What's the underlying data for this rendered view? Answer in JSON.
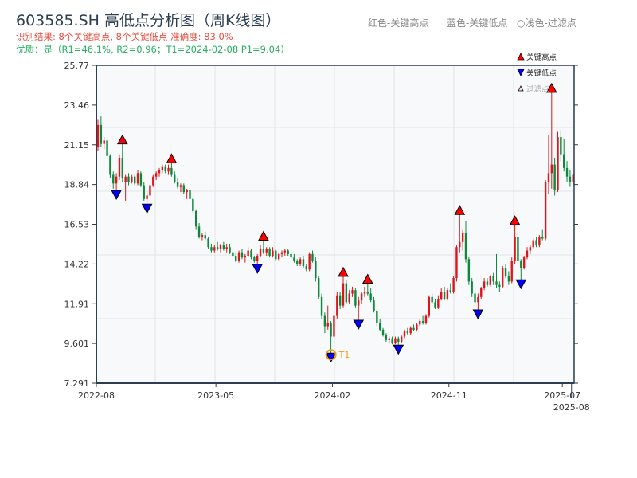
{
  "header": {
    "title": "603585.SH 高低点分析图（周K线图）",
    "result": "识别结果: 8个关键高点, 8个关键低点  准确度: 83.0%",
    "quality": "优质：是（R1=46.1%, R2=0.96；T1=2024-02-08 P1=9.04）",
    "hint_red": "红色-关键高点",
    "hint_blue": "蓝色-关键低点",
    "hint_light": "○浅色-过滤点"
  },
  "colors": {
    "up": "#e0141c",
    "down": "#0a8a3a",
    "high_marker": "#ff0000",
    "low_marker": "#0000ff",
    "t1": "#f39c12"
  },
  "chart_data": {
    "type": "candlestick",
    "ylim": [
      7.291,
      25.77
    ],
    "yticks": [
      "7.291",
      "9.601",
      "11.91",
      "14.22",
      "16.53",
      "18.84",
      "21.15",
      "23.46",
      "25.77"
    ],
    "xticks": [
      {
        "label": "2022-08",
        "index": 0
      },
      {
        "label": "2023-05",
        "index": 39
      },
      {
        "label": "2024-02",
        "index": 77
      },
      {
        "label": "2024-11",
        "index": 115
      },
      {
        "label": "2025-07",
        "index": 152
      },
      {
        "label": "2025-08",
        "index": 155
      }
    ],
    "legend": {
      "position": "top-right",
      "items": [
        "关键高点",
        "关键低点",
        "过滤点"
      ]
    },
    "grid": true,
    "candles_ohlc": [
      [
        21.0,
        22.6,
        20.8,
        22.3
      ],
      [
        22.3,
        22.8,
        21.0,
        21.2
      ],
      [
        21.2,
        21.6,
        20.9,
        21.4
      ],
      [
        21.4,
        21.6,
        20.2,
        20.5
      ],
      [
        20.5,
        20.6,
        19.2,
        19.4
      ],
      [
        19.4,
        19.6,
        18.6,
        18.9
      ],
      [
        18.9,
        19.5,
        18.5,
        19.3
      ],
      [
        19.3,
        20.6,
        19.1,
        20.4
      ],
      [
        20.4,
        21.2,
        19.0,
        19.2
      ],
      [
        19.0,
        19.4,
        17.9,
        19.3
      ],
      [
        19.3,
        19.5,
        18.8,
        19.0
      ],
      [
        19.0,
        19.4,
        18.9,
        19.3
      ],
      [
        19.3,
        19.4,
        18.8,
        18.9
      ],
      [
        18.9,
        19.7,
        18.8,
        19.5
      ],
      [
        19.5,
        19.6,
        18.7,
        18.8
      ],
      [
        18.8,
        19.0,
        17.9,
        18.0
      ],
      [
        18.0,
        18.4,
        17.7,
        18.2
      ],
      [
        18.2,
        18.9,
        18.1,
        18.8
      ],
      [
        18.8,
        19.4,
        18.7,
        19.3
      ],
      [
        19.3,
        19.6,
        19.1,
        19.5
      ],
      [
        19.5,
        19.8,
        19.3,
        19.7
      ],
      [
        19.7,
        20.0,
        19.5,
        19.9
      ],
      [
        19.9,
        20.0,
        19.5,
        19.6
      ],
      [
        19.6,
        20.0,
        19.4,
        19.8
      ],
      [
        19.8,
        20.1,
        19.3,
        19.4
      ],
      [
        19.4,
        19.6,
        18.9,
        19.0
      ],
      [
        19.0,
        19.2,
        18.6,
        18.7
      ],
      [
        18.7,
        18.9,
        18.4,
        18.8
      ],
      [
        18.8,
        18.9,
        18.3,
        18.4
      ],
      [
        18.4,
        18.6,
        18.0,
        18.5
      ],
      [
        18.5,
        18.6,
        17.9,
        18.0
      ],
      [
        18.0,
        18.1,
        17.2,
        17.3
      ],
      [
        17.3,
        17.4,
        16.2,
        16.4
      ],
      [
        16.4,
        16.6,
        15.7,
        15.8
      ],
      [
        15.8,
        16.0,
        15.6,
        15.9
      ],
      [
        15.9,
        16.1,
        15.6,
        15.7
      ],
      [
        15.7,
        15.8,
        15.1,
        15.2
      ],
      [
        15.2,
        15.4,
        14.9,
        15.0
      ],
      [
        15.0,
        15.3,
        14.9,
        15.2
      ],
      [
        15.2,
        15.5,
        15.0,
        15.1
      ],
      [
        15.1,
        15.4,
        14.9,
        15.3
      ],
      [
        15.3,
        15.5,
        15.0,
        15.1
      ],
      [
        15.1,
        15.4,
        14.9,
        15.2
      ],
      [
        15.2,
        15.4,
        14.8,
        14.9
      ],
      [
        14.9,
        15.0,
        14.6,
        14.7
      ],
      [
        14.7,
        14.9,
        14.3,
        14.4
      ],
      [
        14.4,
        15.0,
        14.3,
        14.9
      ],
      [
        14.9,
        15.1,
        14.5,
        14.6
      ],
      [
        14.6,
        14.8,
        14.3,
        14.7
      ],
      [
        14.7,
        15.2,
        14.6,
        15.0
      ],
      [
        15.0,
        15.1,
        14.5,
        14.6
      ],
      [
        14.6,
        14.7,
        14.3,
        14.4
      ],
      [
        14.4,
        14.8,
        14.2,
        14.7
      ],
      [
        14.7,
        15.3,
        14.6,
        15.1
      ],
      [
        15.1,
        15.6,
        14.8,
        14.9
      ],
      [
        14.9,
        15.2,
        14.7,
        15.1
      ],
      [
        15.1,
        15.2,
        14.6,
        14.7
      ],
      [
        14.7,
        15.2,
        14.6,
        15.0
      ],
      [
        15.0,
        15.1,
        14.4,
        14.5
      ],
      [
        14.5,
        14.9,
        14.4,
        14.8
      ],
      [
        14.8,
        15.0,
        14.6,
        14.9
      ],
      [
        14.9,
        15.1,
        14.7,
        15.0
      ],
      [
        15.0,
        15.1,
        14.7,
        14.8
      ],
      [
        14.8,
        15.0,
        14.5,
        14.6
      ],
      [
        14.6,
        14.8,
        14.3,
        14.4
      ],
      [
        14.4,
        14.5,
        14.1,
        14.2
      ],
      [
        14.2,
        14.6,
        14.1,
        14.5
      ],
      [
        14.5,
        14.7,
        14.0,
        14.1
      ],
      [
        14.1,
        14.2,
        13.8,
        13.9
      ],
      [
        13.9,
        14.9,
        13.8,
        14.8
      ],
      [
        14.8,
        15.0,
        14.3,
        14.4
      ],
      [
        14.4,
        14.6,
        13.2,
        13.4
      ],
      [
        13.4,
        13.5,
        12.2,
        12.3
      ],
      [
        12.3,
        12.5,
        11.0,
        11.2
      ],
      [
        11.2,
        11.4,
        10.2,
        10.6
      ],
      [
        10.6,
        11.8,
        10.4,
        10.8
      ],
      [
        10.8,
        10.9,
        9.04,
        10.0
      ],
      [
        10.0,
        11.5,
        9.9,
        11.2
      ],
      [
        11.2,
        12.6,
        11.0,
        12.4
      ],
      [
        12.4,
        12.6,
        11.6,
        11.8
      ],
      [
        11.8,
        13.5,
        11.7,
        13.1
      ],
      [
        13.1,
        13.3,
        11.9,
        12.0
      ],
      [
        12.0,
        12.7,
        11.9,
        12.5
      ],
      [
        12.5,
        12.9,
        12.3,
        12.7
      ],
      [
        12.7,
        12.8,
        11.7,
        11.8
      ],
      [
        11.8,
        12.3,
        10.95,
        12.1
      ],
      [
        12.1,
        12.6,
        11.9,
        12.5
      ],
      [
        12.5,
        12.9,
        12.3,
        12.6
      ],
      [
        12.6,
        13.1,
        12.4,
        12.5
      ],
      [
        12.5,
        12.8,
        12.0,
        12.1
      ],
      [
        12.1,
        12.3,
        11.4,
        11.5
      ],
      [
        11.5,
        11.6,
        10.6,
        10.8
      ],
      [
        10.8,
        11.0,
        10.3,
        10.4
      ],
      [
        10.4,
        10.5,
        10.0,
        10.1
      ],
      [
        10.1,
        10.2,
        9.7,
        9.8
      ],
      [
        9.8,
        10.0,
        9.6,
        9.9
      ],
      [
        9.9,
        10.0,
        9.55,
        9.6
      ],
      [
        9.6,
        10.0,
        9.55,
        9.9
      ],
      [
        9.9,
        10.0,
        9.5,
        9.7
      ],
      [
        9.7,
        10.1,
        9.6,
        10.0
      ],
      [
        10.0,
        10.4,
        9.9,
        10.3
      ],
      [
        10.3,
        10.5,
        10.1,
        10.2
      ],
      [
        10.2,
        10.6,
        10.1,
        10.5
      ],
      [
        10.5,
        10.7,
        10.3,
        10.4
      ],
      [
        10.4,
        10.8,
        10.3,
        10.7
      ],
      [
        10.7,
        11.0,
        10.6,
        10.9
      ],
      [
        10.9,
        11.2,
        10.7,
        10.8
      ],
      [
        10.8,
        11.3,
        10.7,
        11.2
      ],
      [
        11.2,
        12.4,
        11.1,
        12.3
      ],
      [
        12.3,
        12.5,
        11.9,
        12.0
      ],
      [
        12.0,
        12.2,
        11.6,
        11.7
      ],
      [
        11.7,
        12.4,
        11.6,
        12.2
      ],
      [
        12.2,
        12.8,
        12.1,
        12.6
      ],
      [
        12.6,
        12.9,
        12.1,
        12.2
      ],
      [
        12.2,
        12.8,
        12.1,
        12.7
      ],
      [
        12.7,
        13.1,
        12.5,
        12.6
      ],
      [
        12.6,
        13.5,
        12.5,
        13.4
      ],
      [
        13.4,
        15.3,
        13.2,
        15.2
      ],
      [
        15.2,
        17.1,
        14.9,
        15.5
      ],
      [
        15.5,
        16.2,
        15.0,
        16.0
      ],
      [
        16.0,
        16.7,
        14.3,
        14.5
      ],
      [
        14.5,
        14.6,
        13.0,
        13.2
      ],
      [
        13.2,
        13.4,
        12.3,
        12.5
      ],
      [
        12.5,
        12.8,
        11.9,
        12.0
      ],
      [
        12.0,
        12.5,
        11.55,
        12.3
      ],
      [
        12.3,
        12.9,
        12.2,
        12.8
      ],
      [
        12.8,
        13.4,
        12.7,
        13.2
      ],
      [
        13.2,
        13.4,
        12.9,
        13.0
      ],
      [
        13.0,
        13.6,
        12.9,
        13.5
      ],
      [
        13.5,
        13.7,
        13.0,
        13.2
      ],
      [
        13.2,
        14.8,
        12.8,
        13.0
      ],
      [
        13.0,
        13.2,
        12.6,
        12.9
      ],
      [
        12.9,
        14.1,
        12.8,
        14.0
      ],
      [
        14.0,
        14.2,
        13.4,
        13.5
      ],
      [
        13.5,
        13.8,
        13.0,
        13.2
      ],
      [
        13.2,
        14.6,
        13.1,
        14.4
      ],
      [
        14.4,
        16.5,
        14.2,
        15.8
      ],
      [
        15.8,
        16.0,
        14.2,
        14.4
      ],
      [
        14.4,
        14.5,
        13.3,
        14.0
      ],
      [
        14.0,
        14.7,
        13.9,
        14.6
      ],
      [
        14.6,
        15.2,
        14.5,
        15.0
      ],
      [
        15.0,
        15.3,
        14.8,
        15.2
      ],
      [
        15.2,
        15.7,
        15.1,
        15.6
      ],
      [
        15.6,
        15.8,
        15.2,
        15.3
      ],
      [
        15.3,
        15.9,
        15.2,
        15.8
      ],
      [
        15.8,
        16.2,
        15.6,
        15.7
      ],
      [
        15.7,
        19.1,
        15.6,
        19.0
      ],
      [
        19.0,
        21.7,
        18.3,
        19.5
      ],
      [
        19.5,
        24.2,
        18.6,
        20.0
      ],
      [
        20.0,
        20.4,
        18.2,
        18.5
      ],
      [
        18.5,
        21.9,
        18.4,
        21.6
      ],
      [
        21.6,
        22.0,
        20.2,
        20.6
      ],
      [
        20.6,
        21.5,
        19.6,
        19.8
      ],
      [
        19.8,
        20.2,
        19.0,
        19.3
      ],
      [
        19.3,
        19.7,
        18.7,
        19.0
      ],
      [
        19.0,
        19.5,
        18.8,
        19.4
      ]
    ],
    "key_highs": [
      8,
      24,
      54,
      80,
      88,
      118,
      136,
      148
    ],
    "key_lows": [
      6,
      16,
      52,
      76,
      85,
      98,
      124,
      138
    ],
    "t1": {
      "label": "T1",
      "index": 76,
      "date": "2024-02-08",
      "price": 9.04
    }
  }
}
